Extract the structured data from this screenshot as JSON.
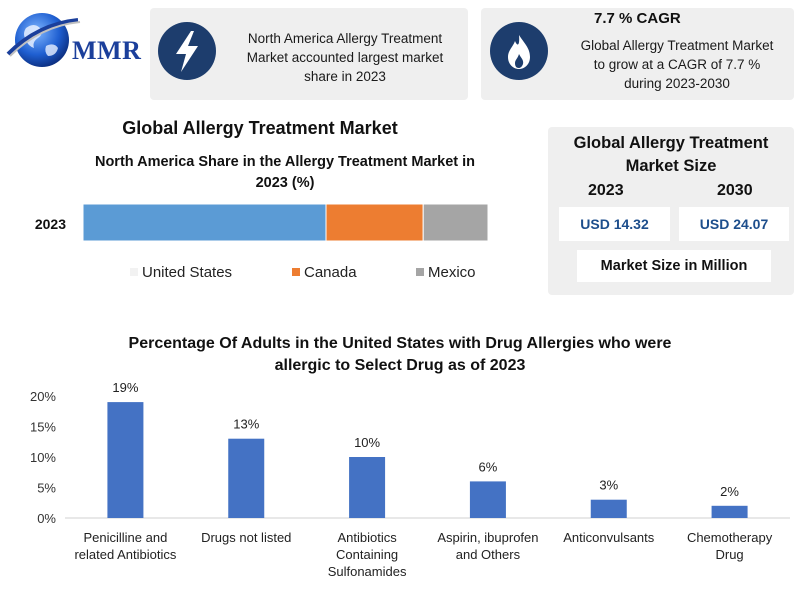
{
  "logo": {
    "text": "MMR"
  },
  "card_north_america": {
    "icon": "lightning-icon",
    "text_lines": [
      "North America Allergy Treatment",
      "Market accounted largest market",
      "share in 2023"
    ]
  },
  "card_cagr": {
    "icon": "flame-icon",
    "title": "7.7 % CAGR",
    "text_lines": [
      "Global Allergy Treatment Market",
      "to grow at a CAGR of 7.7 %",
      "during 2023-2030"
    ]
  },
  "main_title": "Global Allergy Treatment Market",
  "market_size": {
    "title_lines": [
      "Global Allergy Treatment",
      "Market Size"
    ],
    "years": [
      "2023",
      "2030"
    ],
    "values": [
      "USD 14.32",
      "USD 24.07"
    ],
    "unit": "Market Size in Million"
  },
  "chart_data": [
    {
      "type": "bar",
      "orientation": "horizontal",
      "stacked": true,
      "title_lines": [
        "North America Share in the Allergy Treatment Market in",
        "2023 (%)"
      ],
      "categories": [
        "2023"
      ],
      "series": [
        {
          "name": "United States",
          "values": [
            60
          ],
          "color": "#5b9bd5"
        },
        {
          "name": "Canada",
          "values": [
            24
          ],
          "color": "#ed7d31"
        },
        {
          "name": "Mexico",
          "values": [
            16
          ],
          "color": "#a5a5a5"
        }
      ],
      "xlim": [
        0,
        100
      ],
      "legend": "bottom",
      "grid": false
    },
    {
      "type": "bar",
      "title_lines": [
        "Percentage Of Adults in the United States with Drug Allergies who were",
        "allergic to Select Drug as of 2023"
      ],
      "categories": [
        [
          "Penicilline and",
          "related Antibiotics"
        ],
        [
          "Drugs not listed"
        ],
        [
          "Antibiotics",
          "Containing",
          "Sulfonamides"
        ],
        [
          "Aspirin, ibuprofen",
          "and Others"
        ],
        [
          "Anticonvulsants"
        ],
        [
          "Chemotherapy",
          "Drug"
        ]
      ],
      "values": [
        19,
        13,
        10,
        6,
        3,
        2
      ],
      "value_labels": [
        "19%",
        "13%",
        "10%",
        "6%",
        "3%",
        "2%"
      ],
      "yticks": [
        "0%",
        "5%",
        "10%",
        "15%",
        "20%"
      ],
      "ylim": [
        0,
        20
      ],
      "color": "#4472c4",
      "grid": false
    }
  ]
}
